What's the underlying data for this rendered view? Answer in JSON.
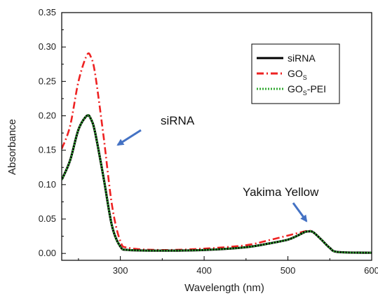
{
  "chart_data": {
    "type": "line",
    "xlabel": "Wavelength (nm)",
    "ylabel": "Absorbance",
    "xlim": [
      230,
      600
    ],
    "ylim": [
      -0.01,
      0.35
    ],
    "xticks": [
      300,
      400,
      500,
      600
    ],
    "yticks": [
      "0.00",
      "0.05",
      "0.10",
      "0.15",
      "0.20",
      "0.25",
      "0.30",
      "0.35"
    ],
    "legend_position": "top-right",
    "series": [
      {
        "name": "siRNA",
        "color": "#000000",
        "style": "solid",
        "x": [
          230,
          240,
          250,
          260,
          265,
          270,
          280,
          290,
          300,
          310,
          350,
          400,
          450,
          480,
          500,
          510,
          520,
          525,
          530,
          540,
          550,
          560,
          600
        ],
        "y": [
          0.107,
          0.135,
          0.18,
          0.2,
          0.195,
          0.175,
          0.11,
          0.04,
          0.01,
          0.005,
          0.004,
          0.005,
          0.009,
          0.015,
          0.02,
          0.025,
          0.031,
          0.032,
          0.031,
          0.02,
          0.008,
          0.002,
          0.001
        ]
      },
      {
        "name": "GO_S",
        "color": "#ee2222",
        "style": "dashdot",
        "x": [
          230,
          240,
          250,
          260,
          265,
          270,
          280,
          290,
          300,
          310,
          350,
          400,
          450,
          480,
          500,
          510,
          520,
          525,
          530,
          540,
          550,
          560,
          600
        ],
        "y": [
          0.152,
          0.185,
          0.25,
          0.288,
          0.285,
          0.26,
          0.17,
          0.07,
          0.018,
          0.008,
          0.005,
          0.007,
          0.012,
          0.02,
          0.026,
          0.029,
          0.032,
          0.033,
          0.031,
          0.02,
          0.008,
          0.002,
          0.001
        ]
      },
      {
        "name": "GO_S-PEI",
        "color": "#33aa33",
        "style": "dotted",
        "x": [
          230,
          240,
          250,
          260,
          265,
          270,
          280,
          290,
          300,
          310,
          350,
          400,
          450,
          480,
          500,
          510,
          520,
          525,
          530,
          540,
          550,
          560,
          600
        ],
        "y": [
          0.107,
          0.135,
          0.18,
          0.2,
          0.195,
          0.175,
          0.11,
          0.04,
          0.01,
          0.005,
          0.004,
          0.005,
          0.009,
          0.015,
          0.02,
          0.025,
          0.031,
          0.032,
          0.031,
          0.02,
          0.008,
          0.002,
          0.001
        ]
      }
    ],
    "legend": {
      "entries": [
        {
          "main": "siRNA",
          "sub": "",
          "tail": ""
        },
        {
          "main": "GO",
          "sub": "S",
          "tail": ""
        },
        {
          "main": "GO",
          "sub": "S",
          "tail": "-PEI"
        }
      ]
    },
    "annotations": [
      {
        "text": "siRNA",
        "arrow_color": "#4472c4"
      },
      {
        "text": "Yakima Yellow",
        "arrow_color": "#4472c4"
      }
    ]
  }
}
